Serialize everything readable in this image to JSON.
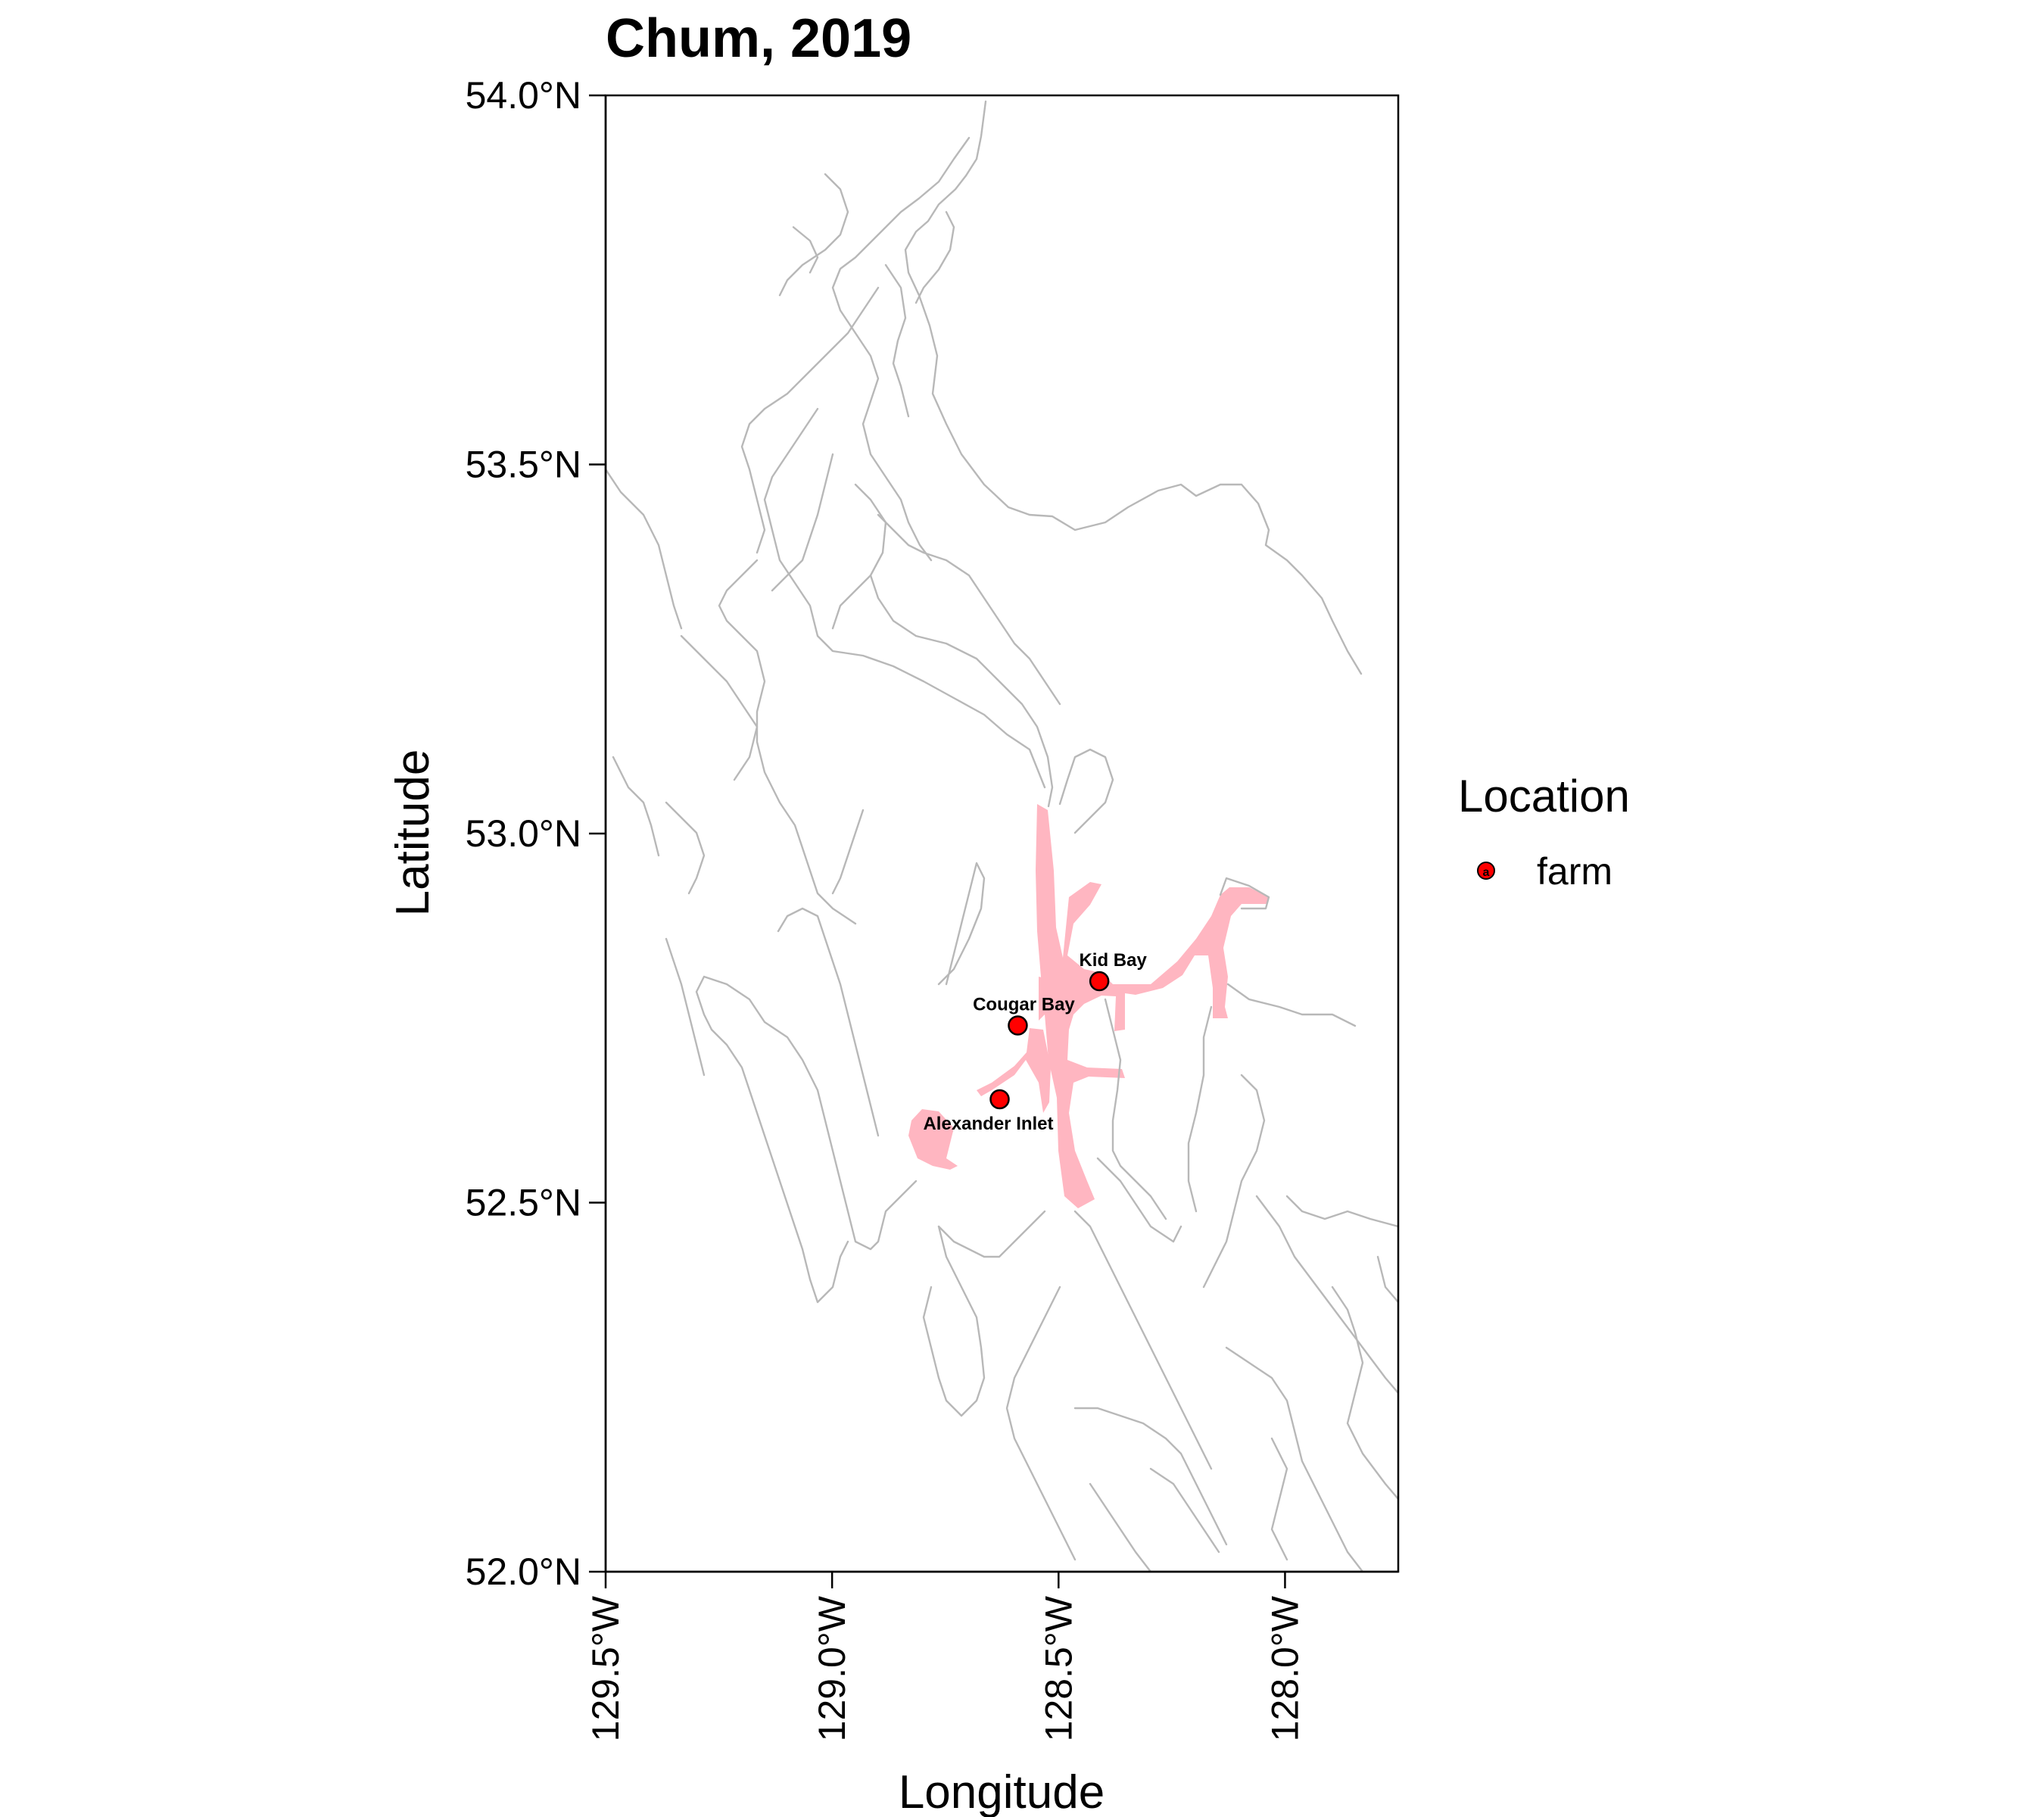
{
  "title": "Chum, 2019",
  "x_axis": {
    "label": "Longitude",
    "ticks": [
      "129.5°W",
      "129.0°W",
      "128.5°W",
      "128.0°W"
    ]
  },
  "y_axis": {
    "label": "Latitude",
    "ticks": [
      "54.0°N",
      "53.5°N",
      "53.0°N",
      "52.5°N",
      "52.0°N"
    ]
  },
  "legend": {
    "title": "Location",
    "items": [
      {
        "label": "farm",
        "key_glyph": "a",
        "color": "#ff0000"
      }
    ]
  },
  "chart_data": {
    "type": "scatter",
    "title": "Chum, 2019",
    "xlabel": "Longitude",
    "ylabel": "Latitude",
    "xlim": [
      -129.5,
      -127.75
    ],
    "ylim": [
      52.0,
      54.0
    ],
    "x_ticks": [
      -129.5,
      -129.0,
      -128.5,
      -128.0
    ],
    "y_ticks": [
      52.0,
      52.5,
      53.0,
      53.5,
      54.0
    ],
    "series": [
      {
        "name": "farm",
        "points": [
          {
            "label": "Kid Bay",
            "lon": -128.41,
            "lat": 52.8
          },
          {
            "label": "Cougar Bay",
            "lon": -128.59,
            "lat": 52.74
          },
          {
            "label": "Alexander Inlet",
            "lon": -128.63,
            "lat": 52.64
          }
        ]
      }
    ],
    "grid": false,
    "legend_position": "right",
    "colors": {
      "farm_fill": "#ff0000",
      "coastline": "#b8b8b8",
      "shaded_water": "#ffb6c1"
    }
  }
}
